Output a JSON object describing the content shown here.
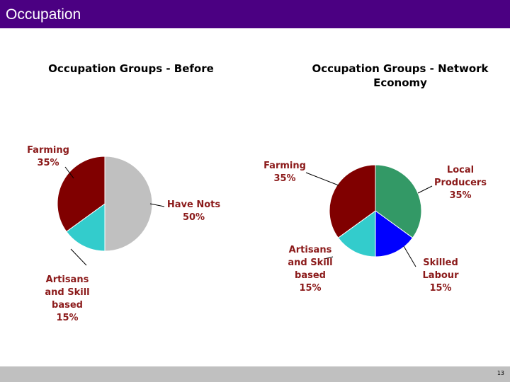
{
  "header": {
    "title": "Occupation"
  },
  "footer": {
    "page_number": "13"
  },
  "chart_data": [
    {
      "type": "pie",
      "title": "Occupation Groups - Before",
      "slices": [
        {
          "label": "Have Nots",
          "value": 50,
          "display": "50%",
          "color": "#c0c0c0"
        },
        {
          "label": "Artisans and Skill based",
          "value": 15,
          "display": "15%",
          "color": "#33cccc"
        },
        {
          "label": "Farming",
          "value": 35,
          "display": "35%",
          "color": "#800000"
        }
      ]
    },
    {
      "type": "pie",
      "title": "Occupation Groups - Network Economy",
      "slices": [
        {
          "label": "Local Producers",
          "value": 35,
          "display": "35%",
          "color": "#339966"
        },
        {
          "label": "Skilled Labour",
          "value": 15,
          "display": "15%",
          "color": "#0000ff"
        },
        {
          "label": "Artisans and Skill based",
          "value": 15,
          "display": "15%",
          "color": "#33cccc"
        },
        {
          "label": "Farming",
          "value": 35,
          "display": "35%",
          "color": "#800000"
        }
      ]
    }
  ]
}
